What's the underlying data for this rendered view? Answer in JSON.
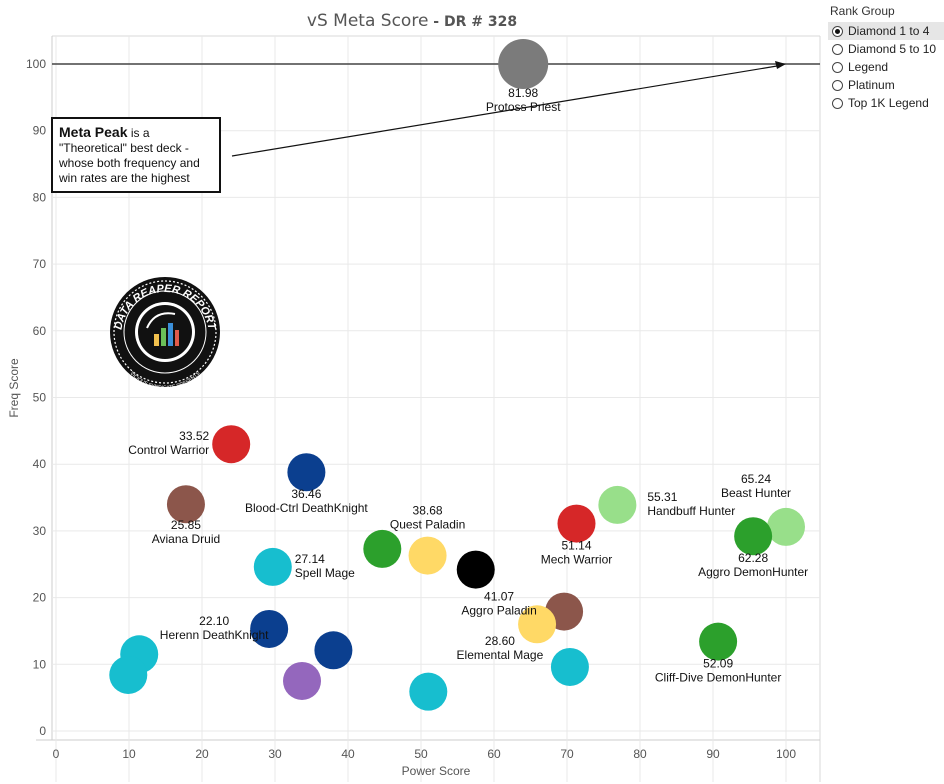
{
  "chart_title": {
    "main": "vS Meta Score",
    "sub": " - DR # 328"
  },
  "legend": {
    "title": "Rank Group",
    "items": [
      "Diamond 1 to 4",
      "Diamond 5 to 10",
      "Legend",
      "Platinum",
      "Top 1K Legend"
    ],
    "selected": 0
  },
  "annotation": {
    "highlight": "Meta Peak",
    "text": " is a \"Theoretical\" best deck - whose both frequency and win rates are the highest"
  },
  "logo": {
    "top_text": "DATA REAPER REPORT",
    "bottom_text": "VICIOUS SYNDICATE PRESENTS"
  },
  "chart_data": {
    "type": "scatter",
    "xlabel": "Power Score",
    "ylabel": "Freq Score",
    "xlim": [
      0,
      105
    ],
    "ylim": [
      0,
      105
    ],
    "xticks": [
      0,
      10,
      20,
      30,
      40,
      50,
      60,
      70,
      80,
      90,
      100
    ],
    "yticks": [
      0,
      10,
      20,
      30,
      40,
      50,
      60,
      70,
      80,
      90,
      100
    ],
    "grid": true,
    "reference_line": {
      "y": 100
    },
    "points": [
      {
        "x": 64,
        "y": 100,
        "color": "#7b7b7b",
        "value": "81.98",
        "name": "Protoss Priest"
      },
      {
        "x": 24,
        "y": 43,
        "color": "#d62728",
        "value": "33.52",
        "name": "Control Warrior"
      },
      {
        "x": 34.3,
        "y": 38.8,
        "color": "#0b3f8f",
        "value": "36.46",
        "name": "Blood-Ctrl DeathKnight"
      },
      {
        "x": 17.8,
        "y": 34,
        "color": "#8c564b",
        "value": "25.85",
        "name": "Aviana Druid"
      },
      {
        "x": 29.7,
        "y": 24.6,
        "color": "#17becf",
        "value": "27.14",
        "name": "Spell Mage"
      },
      {
        "x": 44.7,
        "y": 27.3,
        "color": "#2ca02c",
        "value": "",
        "name": ""
      },
      {
        "x": 50.9,
        "y": 26.3,
        "color": "#ffd966",
        "value": "38.68",
        "name": "Quest Paladin"
      },
      {
        "x": 57.5,
        "y": 24.2,
        "color": "#000000",
        "value": "",
        "name": ""
      },
      {
        "x": 71.3,
        "y": 31.1,
        "color": "#d62728",
        "value": "51.14",
        "name": "Mech Warrior"
      },
      {
        "x": 76.9,
        "y": 33.9,
        "color": "#98df8a",
        "value": "55.31",
        "name": "Handbuff Hunter"
      },
      {
        "x": 100,
        "y": 30.6,
        "color": "#98df8a",
        "value": "65.24",
        "name": "Beast Hunter"
      },
      {
        "x": 95.5,
        "y": 29.2,
        "color": "#2ca02c",
        "value": "62.28",
        "name": "Aggro DemonHunter"
      },
      {
        "x": 69.6,
        "y": 17.9,
        "color": "#8c564b",
        "value": "",
        "name": ""
      },
      {
        "x": 65.9,
        "y": 16,
        "color": "#ffd966",
        "value": "41.07",
        "name": "Aggro Paladin"
      },
      {
        "x": 90.7,
        "y": 13.4,
        "color": "#2ca02c",
        "value": "52.09",
        "name": "Cliff-Dive DemonHunter"
      },
      {
        "x": 70.4,
        "y": 9.6,
        "color": "#17becf",
        "value": "28.60",
        "name": "Elemental Mage"
      },
      {
        "x": 51,
        "y": 5.9,
        "color": "#17becf",
        "value": "",
        "name": ""
      },
      {
        "x": 29.2,
        "y": 15.3,
        "color": "#0b3f8f",
        "value": "22.10",
        "name": "Herenn DeathKnight"
      },
      {
        "x": 38,
        "y": 12.1,
        "color": "#0b3f8f",
        "value": "",
        "name": ""
      },
      {
        "x": 33.7,
        "y": 7.5,
        "color": "#9467bd",
        "value": "",
        "name": ""
      },
      {
        "x": 11.4,
        "y": 11.5,
        "color": "#17becf",
        "value": "",
        "name": ""
      },
      {
        "x": 9.9,
        "y": 8.4,
        "color": "#17becf",
        "value": "",
        "name": ""
      }
    ]
  }
}
